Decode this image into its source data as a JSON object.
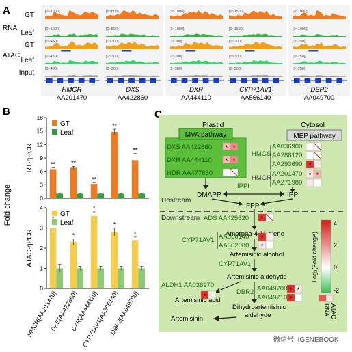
{
  "panelA": {
    "letter": "A",
    "row_groups": [
      {
        "label": "RNA",
        "rows": [
          "GT",
          "Leaf"
        ]
      },
      {
        "label": "ATAC",
        "rows": [
          "GT",
          "Leaf",
          "Input"
        ]
      }
    ],
    "rows": [
      "GT",
      "Leaf",
      "GT",
      "Leaf",
      "Input"
    ],
    "row_colors": [
      "#f07a20",
      "#3bb54a",
      "#f0a020",
      "#3bd070",
      "#999999"
    ],
    "tracks": [
      {
        "gene": "HMGR",
        "accession": "AA201470",
        "ranges": [
          "[0~1000]",
          "[0~1000]",
          "[0~450]",
          "[0~450]",
          "[0~450]"
        ]
      },
      {
        "gene": "DXS",
        "accession": "AA422860",
        "ranges": [
          "[0~800]",
          "[0~800]",
          "[0~300]",
          "[0~300]",
          "[0~300]"
        ]
      },
      {
        "gene": "DXR",
        "accession": "AA444110",
        "ranges": [
          "[0~1000]",
          "[0~1000]",
          "[0~300]",
          "[0~300]",
          "[0~300]"
        ]
      },
      {
        "gene": "CYP71AV1",
        "accession": "AA566140",
        "ranges": [
          "[0~1500]",
          "[0~1500]",
          "[0~300]",
          "[0~300]",
          "[0~300]"
        ]
      },
      {
        "gene": "DBR2",
        "accession": "AA049700",
        "ranges": [
          "[0~1000]",
          "[0~1000]",
          "[0~250]",
          "[0~250]",
          "[0~250]"
        ]
      }
    ]
  },
  "panelB": {
    "letter": "B",
    "shared_ylabel": "Fold change",
    "samples": [
      "HMGR(AA201470)",
      "DXS(AA422860)",
      "DXR(AA444110)",
      "CYP71AV1(AA566140)",
      "DBR2(AA049700)"
    ],
    "colors": {
      "gt_rna": "#f07a20",
      "leaf_rna": "#2f9e44",
      "gt_atac": "#f5cd4a",
      "leaf_atac": "#8fc97a"
    }
  },
  "chart_data": [
    {
      "type": "bar",
      "ylabel": "RT-qPCR",
      "categories": [
        "HMGR(AA201470)",
        "DXS(AA422860)",
        "DXR(AA444110)",
        "CYP71AV1(AA566140)",
        "DBR2(AA049700)"
      ],
      "series": [
        {
          "name": "GT",
          "values": [
            6.5,
            6.8,
            3.2,
            14.8,
            8.5
          ],
          "errors": [
            0.3,
            0.3,
            0.25,
            0.6,
            1.5
          ],
          "sig": [
            "**",
            "**",
            "**",
            "**",
            "**"
          ]
        },
        {
          "name": "Leaf",
          "values": [
            1.0,
            1.0,
            1.0,
            1.0,
            1.0
          ],
          "errors": [
            0.1,
            0.1,
            0.1,
            0.1,
            0.1
          ]
        }
      ],
      "ylim": [
        0,
        18
      ],
      "yticks": [
        0,
        3,
        6,
        9,
        12,
        15,
        18
      ],
      "legend": "top-left"
    },
    {
      "type": "bar",
      "ylabel": "ATAC-qPCR",
      "categories": [
        "HMGR(AA201470)",
        "DXS(AA422860)",
        "DXR(AA444110)",
        "CYP71AV1(AA566140)",
        "DBR2(AA049700)"
      ],
      "series": [
        {
          "name": "GT",
          "values": [
            3.0,
            2.3,
            3.6,
            2.8,
            2.4
          ],
          "errors": [
            0.3,
            0.15,
            0.2,
            0.2,
            0.15
          ],
          "sig": [
            "*",
            "*",
            "*",
            "*",
            "*"
          ]
        },
        {
          "name": "Leaf",
          "values": [
            1.0,
            1.0,
            1.0,
            1.0,
            1.0
          ],
          "errors": [
            0.2,
            0.1,
            0.1,
            0.1,
            0.1
          ]
        }
      ],
      "ylim": [
        0,
        4
      ],
      "yticks": [
        0,
        1,
        2,
        3,
        4
      ],
      "legend": "top-left"
    }
  ],
  "panelC": {
    "letter": "C",
    "plastid": "Plastid",
    "cytosol": "Cytosol",
    "mva": "MVA pathway",
    "mep": "MEP pathway",
    "genes_plastid": [
      "DXS AA422860",
      "DXR AA444110",
      "HDR AA477650"
    ],
    "hmgs": "HMGS",
    "hmgs_ids": [
      "AA036900",
      "AA288120",
      "AA293690"
    ],
    "hmgr": "HMGR",
    "hmgr_ids": [
      "AA201470",
      "AA271980"
    ],
    "ippi": "IPPI",
    "dmapp": "DMAPP",
    "ipp": "IPP",
    "fpp": "FPP",
    "upstream": "Upstream",
    "downstream": "Downstream",
    "ads": "ADS AA425620",
    "amorpha": "Amorpha-4,11-diene",
    "cyp1": "CYP71AV1",
    "cyp1_ids": [
      "AA566140",
      "AA502080"
    ],
    "art_alcohol": "Artemisinic alcohol",
    "cyp2": "CYP71AV1",
    "art_aldehyde": "Artemisinic aldehyde",
    "aldh1": "ALDH1 AA036970",
    "art_acid": "Artemisinic acid",
    "dbr2": "DBR2",
    "dbr2_ids": [
      "AA049700",
      "AA049710"
    ],
    "dihydro1": "Dihydroartemisinic",
    "dihydro2": "aldehyde",
    "artemisinin": "Artemisinin",
    "scale_title": "Log₂(Fold change)",
    "scale_ticks": [
      "4",
      "2",
      "0",
      "-2"
    ],
    "col_labels": [
      "RNA",
      "ATAC"
    ],
    "colors": {
      "bg": "#c8e6a8",
      "box": "#4caf3c",
      "red": "#e0302a",
      "mid": "#f7b8b0",
      "grey": "#d0d0d0"
    },
    "watermark": "微信号: IGENEBOOK"
  }
}
